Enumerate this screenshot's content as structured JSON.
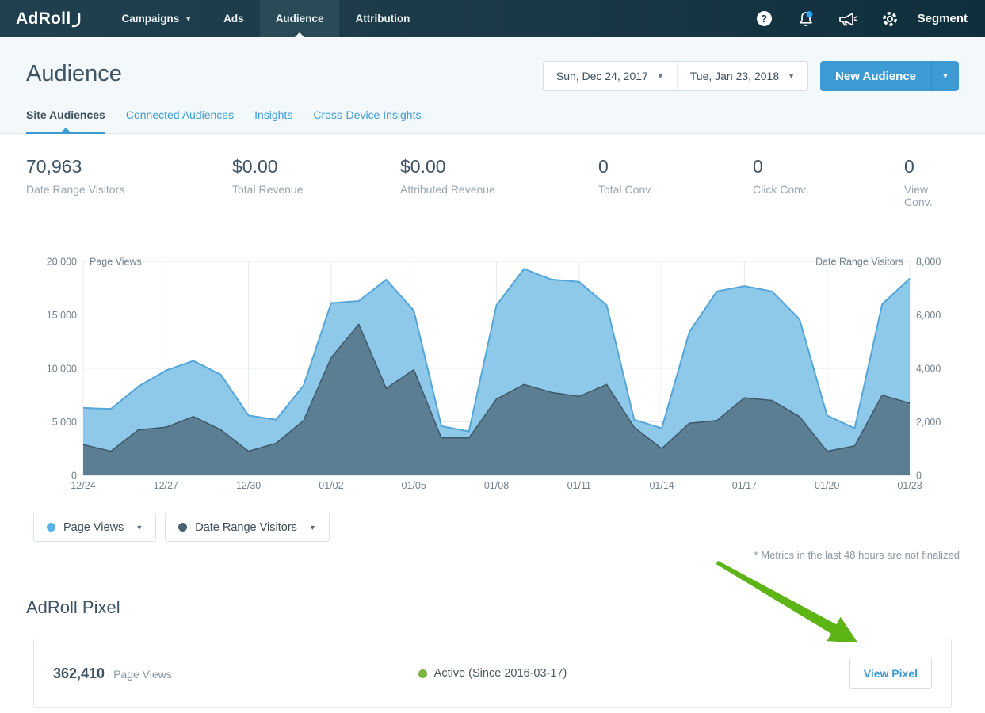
{
  "navbar": {
    "logo": "AdRoll",
    "items": [
      {
        "label": "Campaigns",
        "has_caret": true,
        "active": false
      },
      {
        "label": "Ads",
        "has_caret": false,
        "active": false
      },
      {
        "label": "Audience",
        "has_caret": false,
        "active": true
      },
      {
        "label": "Attribution",
        "has_caret": false,
        "active": false
      }
    ],
    "icons": [
      "help-icon",
      "notifications-icon",
      "announcements-icon",
      "settings-icon"
    ],
    "notification_badge_color": "#2f9ff0",
    "segment_label": "Segment"
  },
  "header": {
    "title": "Audience",
    "date_start": "Sun, Dec 24, 2017",
    "date_end": "Tue, Jan 23, 2018",
    "new_audience_label": "New Audience"
  },
  "tabs": [
    {
      "label": "Site Audiences",
      "active": true
    },
    {
      "label": "Connected Audiences",
      "active": false
    },
    {
      "label": "Insights",
      "active": false
    },
    {
      "label": "Cross-Device Insights",
      "active": false
    }
  ],
  "stats": [
    {
      "value": "70,963",
      "label": "Date Range Visitors"
    },
    {
      "value": "$0.00",
      "label": "Total Revenue"
    },
    {
      "value": "$0.00",
      "label": "Attributed Revenue"
    },
    {
      "value": "0",
      "label": "Total Conv."
    },
    {
      "value": "0",
      "label": "Click Conv."
    },
    {
      "value": "0",
      "label": "View Conv."
    }
  ],
  "chart_data": {
    "type": "area",
    "x": [
      "12/24",
      "12/25",
      "12/26",
      "12/27",
      "12/28",
      "12/29",
      "12/30",
      "12/31",
      "01/01",
      "01/02",
      "01/03",
      "01/04",
      "01/05",
      "01/06",
      "01/07",
      "01/08",
      "01/09",
      "01/10",
      "01/11",
      "01/12",
      "01/13",
      "01/14",
      "01/15",
      "01/16",
      "01/17",
      "01/18",
      "01/19",
      "01/20",
      "01/21",
      "01/22",
      "01/23"
    ],
    "x_tick_labels": [
      "12/24",
      "12/27",
      "12/30",
      "01/02",
      "01/05",
      "01/08",
      "01/11",
      "01/14",
      "01/17",
      "01/20",
      "01/23"
    ],
    "series": [
      {
        "name": "Page Views",
        "axis": "left",
        "fill_color": "#8ec9ea",
        "line_color": "#54a5d8",
        "values": [
          6300,
          6200,
          8300,
          9800,
          10700,
          9400,
          5600,
          5200,
          8400,
          16100,
          16300,
          18300,
          15400,
          4600,
          4100,
          15900,
          19300,
          18300,
          18100,
          15900,
          5200,
          4400,
          13400,
          17200,
          17700,
          17200,
          14600,
          5600,
          4400,
          16000,
          18400
        ]
      },
      {
        "name": "Date Range Visitors",
        "axis": "right",
        "fill_color": "#5c7e93",
        "line_color": "#3e586a",
        "values": [
          1150,
          900,
          1700,
          1800,
          2200,
          1700,
          900,
          1200,
          2050,
          4400,
          5650,
          3250,
          3950,
          1400,
          1400,
          2850,
          3400,
          3100,
          2950,
          3400,
          1800,
          1000,
          1950,
          2050,
          2900,
          2800,
          2200,
          900,
          1100,
          3000,
          2700
        ]
      }
    ],
    "left_axis": {
      "title": "Page Views",
      "min": 0,
      "max": 20000,
      "ticks": [
        "20,000",
        "15,000",
        "10,000",
        "5,000",
        "0"
      ]
    },
    "right_axis": {
      "title": "Date Range Visitors",
      "min": 0,
      "max": 8000,
      "ticks": [
        "8,000",
        "6,000",
        "4,000",
        "2,000",
        "0"
      ]
    },
    "grid": true,
    "legend_position": "bottom-left"
  },
  "legend": [
    {
      "label": "Page Views",
      "dot_color": "#56b3e8"
    },
    {
      "label": "Date Range Visitors",
      "dot_color": "#49616f"
    }
  ],
  "footnote": "* Metrics in the last 48 hours are not finalized",
  "pixel": {
    "heading": "AdRoll Pixel",
    "value": "362,410",
    "value_label": "Page Views",
    "status_text": "Active (Since 2016-03-17)",
    "status_color": "#79b341",
    "button_label": "View Pixel"
  },
  "colors": {
    "accent_blue": "#3d9bd5",
    "navbar_bg": "#1c3a48",
    "navbar_active_bg": "#2b4a58",
    "annotation_arrow_green": "#5cb514"
  }
}
